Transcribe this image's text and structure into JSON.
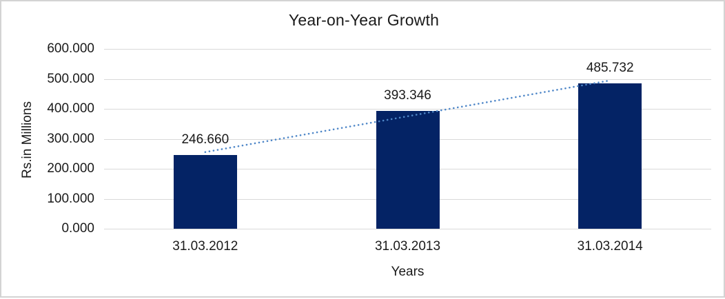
{
  "chart_data": {
    "type": "bar",
    "title": "Year-on-Year Growth",
    "xlabel": "Years",
    "ylabel": "Rs.in Millions",
    "categories": [
      "31.03.2012",
      "31.03.2013",
      "31.03.2014"
    ],
    "values": [
      246.66,
      393.346,
      485.732
    ],
    "data_labels": [
      "246.660",
      "393.346",
      "485.732"
    ],
    "ytick_values": [
      0,
      100,
      200,
      300,
      400,
      500,
      600
    ],
    "ytick_labels": [
      "0.000",
      "100.000",
      "200.000",
      "300.000",
      "400.000",
      "500.000",
      "600.000"
    ],
    "ylim": [
      0,
      600
    ],
    "grid": true,
    "legend": "none",
    "trendline": {
      "type": "linear",
      "style": "dotted"
    },
    "colors": {
      "bar": "#042365",
      "trendline": "#4f87c8",
      "gridline": "#d9d9d9",
      "text": "#1a1a1a",
      "background": "#ffffff",
      "border": "#d3d3d3"
    }
  }
}
